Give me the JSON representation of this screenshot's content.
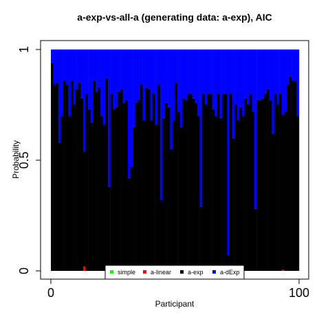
{
  "chart_data": {
    "type": "bar",
    "stacked": true,
    "title": "a-exp-vs-all-a (generating data: a-exp), AIC",
    "xlabel": "Participant",
    "ylabel": "Probability",
    "xlim": [
      0,
      100
    ],
    "ylim": [
      0,
      1
    ],
    "x_ticks": [
      {
        "value": 0,
        "label": "0"
      },
      {
        "value": 100,
        "label": "100"
      }
    ],
    "y_ticks": [
      {
        "value": 0,
        "label": "0"
      },
      {
        "value": 0.5,
        "label": "0.5"
      },
      {
        "value": 1,
        "label": "1"
      }
    ],
    "legend": {
      "placement": "bottom-center",
      "entries": [
        {
          "name": "simple",
          "color": "#00ff00"
        },
        {
          "name": "a-linear",
          "color": "#ff0000"
        },
        {
          "name": "a-exp",
          "color": "#000000"
        },
        {
          "name": "a-dExp",
          "color": "#0000ff"
        }
      ]
    },
    "series": [
      {
        "name": "simple",
        "color": "#00ff00",
        "values": [
          0,
          0,
          0,
          0,
          0,
          0,
          0,
          0,
          0,
          0,
          0,
          0,
          0,
          0,
          0,
          0,
          0,
          0,
          0,
          0,
          0,
          0,
          0,
          0,
          0,
          0,
          0,
          0,
          0,
          0,
          0,
          0,
          0,
          0,
          0,
          0,
          0,
          0,
          0,
          0,
          0,
          0,
          0,
          0,
          0,
          0,
          0,
          0,
          0,
          0,
          0,
          0,
          0,
          0,
          0,
          0,
          0,
          0,
          0,
          0,
          0,
          0,
          0,
          0,
          0,
          0,
          0,
          0,
          0,
          0,
          0,
          0,
          0,
          0,
          0,
          0,
          0,
          0,
          0,
          0,
          0,
          0,
          0,
          0,
          0,
          0,
          0,
          0,
          0,
          0,
          0,
          0,
          0,
          0,
          0,
          0,
          0,
          0,
          0,
          0
        ]
      },
      {
        "name": "a-linear",
        "color": "#ff0000",
        "values": [
          0,
          0,
          0,
          0,
          0,
          0,
          0,
          0,
          0,
          0,
          0,
          0,
          0,
          0.02,
          0,
          0,
          0,
          0,
          0,
          0,
          0,
          0,
          0,
          0,
          0,
          0,
          0,
          0,
          0,
          0,
          0,
          0,
          0,
          0,
          0,
          0,
          0,
          0,
          0,
          0,
          0,
          0,
          0,
          0,
          0,
          0,
          0,
          0,
          0,
          0,
          0,
          0,
          0,
          0,
          0,
          0,
          0,
          0,
          0,
          0,
          0,
          0,
          0,
          0,
          0,
          0,
          0,
          0,
          0,
          0,
          0,
          0,
          0,
          0,
          0,
          0,
          0,
          0,
          0,
          0,
          0,
          0,
          0,
          0,
          0,
          0,
          0,
          0,
          0,
          0,
          0,
          0,
          0,
          0.005,
          0,
          0,
          0,
          0,
          0,
          0
        ]
      },
      {
        "name": "a-exp",
        "color": "#000000",
        "values": [
          0.94,
          0.84,
          0.85,
          0.58,
          0.7,
          0.86,
          0.84,
          0.7,
          0.86,
          0.75,
          0.82,
          0.85,
          0.78,
          0.52,
          0.8,
          0.73,
          0.67,
          0.86,
          0.81,
          0.83,
          0.7,
          0.66,
          0.87,
          0.38,
          0.8,
          0.73,
          0.74,
          0.81,
          0.82,
          0.76,
          0.77,
          0.42,
          0.47,
          0.65,
          0.76,
          0.77,
          0.84,
          0.68,
          0.83,
          0.82,
          0.68,
          0.8,
          0.66,
          0.84,
          0.32,
          0.69,
          0.76,
          0.74,
          0.55,
          0.68,
          0.85,
          0.72,
          0.65,
          0.78,
          0.77,
          0.8,
          0.8,
          0.78,
          0.76,
          0.7,
          0.29,
          0.8,
          0.75,
          0.8,
          0.8,
          0.73,
          0.7,
          0.8,
          0.69,
          0.8,
          0.8,
          0.07,
          0.8,
          0.6,
          0.75,
          0.68,
          0.74,
          0.7,
          0.78,
          0.75,
          0.8,
          0.72,
          0.28,
          0.77,
          0.77,
          0.78,
          0.8,
          0.82,
          0.77,
          0.62,
          0.8,
          0.75,
          0.8,
          0.7,
          0.72,
          0.84,
          0.88,
          0.86,
          0.86,
          0.7
        ]
      },
      {
        "name": "a-dExp",
        "color": "#0000ff",
        "values": [
          0.06,
          0.16,
          0.15,
          0.42,
          0.3,
          0.14,
          0.16,
          0.3,
          0.14,
          0.25,
          0.18,
          0.15,
          0.22,
          0.46,
          0.2,
          0.27,
          0.33,
          0.14,
          0.19,
          0.17,
          0.3,
          0.34,
          0.13,
          0.62,
          0.2,
          0.27,
          0.26,
          0.19,
          0.18,
          0.24,
          0.23,
          0.58,
          0.53,
          0.35,
          0.24,
          0.23,
          0.16,
          0.32,
          0.17,
          0.18,
          0.32,
          0.2,
          0.34,
          0.16,
          0.68,
          0.31,
          0.24,
          0.26,
          0.45,
          0.32,
          0.15,
          0.28,
          0.35,
          0.22,
          0.23,
          0.2,
          0.2,
          0.22,
          0.24,
          0.3,
          0.71,
          0.2,
          0.25,
          0.2,
          0.2,
          0.27,
          0.3,
          0.2,
          0.31,
          0.2,
          0.2,
          0.93,
          0.2,
          0.4,
          0.25,
          0.32,
          0.26,
          0.3,
          0.22,
          0.25,
          0.2,
          0.28,
          0.72,
          0.23,
          0.23,
          0.22,
          0.2,
          0.18,
          0.23,
          0.38,
          0.2,
          0.25,
          0.2,
          0.295,
          0.28,
          0.16,
          0.12,
          0.14,
          0.14,
          0.3
        ]
      }
    ]
  }
}
